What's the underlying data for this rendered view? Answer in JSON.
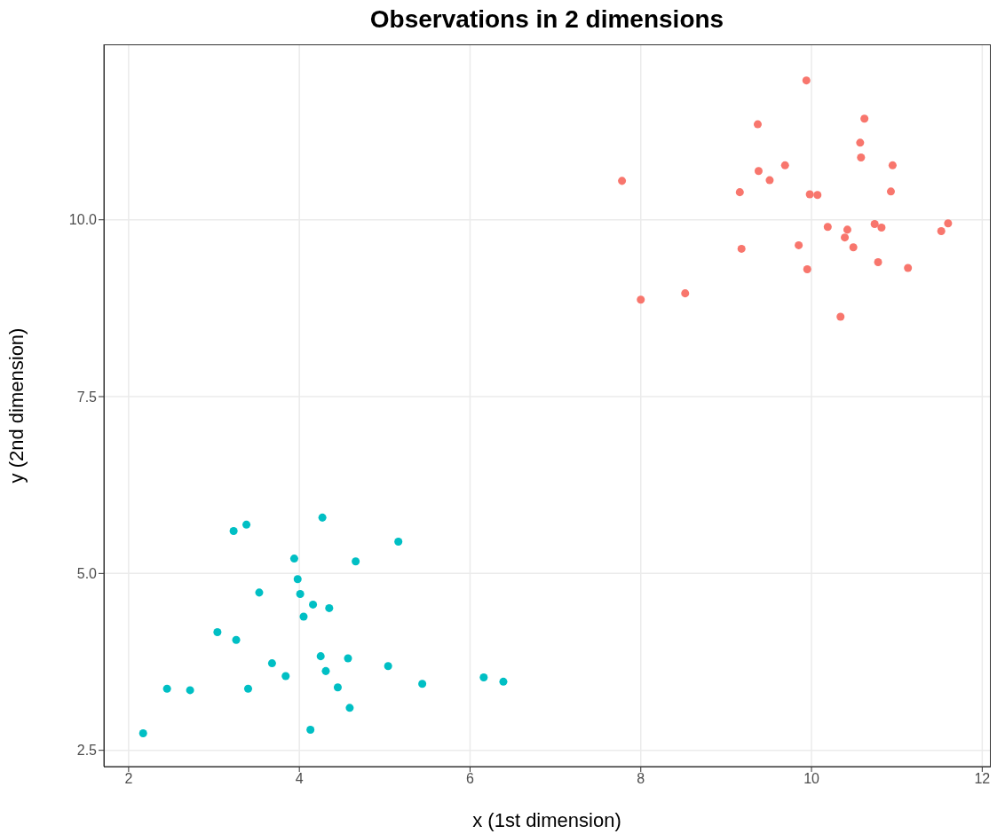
{
  "chart_data": {
    "type": "scatter",
    "title": "Observations in 2 dimensions",
    "xlabel": "x (1st dimension)",
    "ylabel": "y (2nd dimension)",
    "xlim": [
      1.71,
      12.09
    ],
    "ylim": [
      2.27,
      12.48
    ],
    "xticks": [
      2,
      4,
      6,
      8,
      10,
      12
    ],
    "yticks": [
      {
        "value": 2.5,
        "label": "2.5"
      },
      {
        "value": 5,
        "label": "5.0"
      },
      {
        "value": 7.5,
        "label": "7.5"
      },
      {
        "value": 10,
        "label": "10.0"
      }
    ],
    "grid": true,
    "legend": false,
    "marker": "circle",
    "series": [
      {
        "color": "#f8766d",
        "x": [
          9.94,
          9.37,
          10.62,
          10.57,
          10.58,
          9.38,
          9.69,
          7.78,
          9.51,
          10.95,
          9.16,
          9.98,
          10.07,
          10.93,
          10.19,
          10.42,
          10.39,
          10.74,
          10.82,
          11.6,
          11.52,
          9.85,
          9.18,
          10.49,
          10.78,
          9.95,
          11.13,
          8.52,
          8.0,
          10.34
        ],
        "values": [
          11.97,
          11.35,
          11.43,
          11.09,
          10.88,
          10.69,
          10.77,
          10.55,
          10.56,
          10.77,
          10.39,
          10.36,
          10.35,
          10.4,
          9.9,
          9.86,
          9.75,
          9.94,
          9.89,
          9.95,
          9.84,
          9.64,
          9.59,
          9.61,
          9.4,
          9.3,
          9.32,
          8.96,
          8.87,
          8.63
        ]
      },
      {
        "color": "#00bfc4",
        "x": [
          4.27,
          3.38,
          3.23,
          5.16,
          3.94,
          4.66,
          3.98,
          3.53,
          4.01,
          4.16,
          4.35,
          4.05,
          3.04,
          3.26,
          4.25,
          4.57,
          3.68,
          5.04,
          4.31,
          3.84,
          6.16,
          6.39,
          5.44,
          4.45,
          2.45,
          2.72,
          3.4,
          4.59,
          4.13,
          2.17
        ],
        "values": [
          5.79,
          5.69,
          5.6,
          5.45,
          5.21,
          5.17,
          4.92,
          4.73,
          4.71,
          4.56,
          4.51,
          4.39,
          4.17,
          4.06,
          3.83,
          3.8,
          3.73,
          3.69,
          3.62,
          3.55,
          3.53,
          3.47,
          3.44,
          3.39,
          3.37,
          3.35,
          3.37,
          3.1,
          2.79,
          2.74
        ]
      }
    ]
  }
}
